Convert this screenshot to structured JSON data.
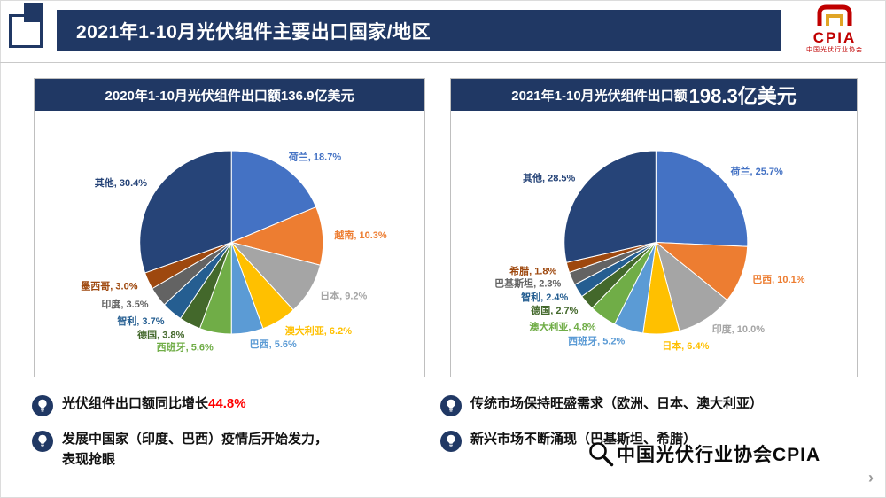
{
  "slide": {
    "title": "2021年1-10月光伏组件主要出口国家/地区"
  },
  "logo": {
    "acronym": "CPIA",
    "subtitle": "中国光伏行业协会"
  },
  "panels": [
    {
      "header_prefix": "2020年1-10月光伏组件出口额",
      "header_amount": "136.9亿美元"
    },
    {
      "header_prefix": "2021年1-10月光伏组件出口额",
      "header_amount": "198.3亿美元"
    }
  ],
  "chart_data": [
    {
      "type": "pie",
      "title": "2020年1-10月光伏组件出口额136.9亿美元",
      "unit": "%",
      "legend": "none",
      "data_labels": "outside",
      "start_angle_deg": 0,
      "direction": "clockwise",
      "categories": [
        "荷兰",
        "越南",
        "日本",
        "澳大利亚",
        "巴西",
        "西班牙",
        "德国",
        "智利",
        "印度",
        "墨西哥",
        "其他"
      ],
      "values": [
        18.7,
        10.3,
        9.2,
        6.2,
        5.6,
        5.6,
        3.8,
        3.7,
        3.5,
        3.0,
        30.4
      ],
      "labels": [
        "荷兰, 18.7%",
        "越南, 10.3%",
        "日本, 9.2%",
        "澳大利亚, 6.2%",
        "巴西, 5.6%",
        "西班牙, 5.6%",
        "德国, 3.8%",
        "智利, 3.7%",
        "印度, 3.5%",
        "墨西哥, 3.0%",
        "其他, 30.4%"
      ],
      "colors": [
        "#4472C4",
        "#ED7D31",
        "#A5A5A5",
        "#FFC000",
        "#5B9BD5",
        "#70AD47",
        "#43682B",
        "#255E91",
        "#636363",
        "#9E480E",
        "#264478"
      ]
    },
    {
      "type": "pie",
      "title": "2021年1-10月光伏组件出口额198.3亿美元",
      "unit": "%",
      "legend": "none",
      "data_labels": "outside",
      "start_angle_deg": 0,
      "direction": "clockwise",
      "categories": [
        "荷兰",
        "巴西",
        "印度",
        "日本",
        "西班牙",
        "澳大利亚",
        "德国",
        "智利",
        "巴基斯坦",
        "希腊",
        "其他"
      ],
      "values": [
        25.7,
        10.1,
        10.0,
        6.4,
        5.2,
        4.8,
        2.7,
        2.4,
        2.3,
        1.8,
        28.5
      ],
      "labels": [
        "荷兰, 25.7%",
        "巴西, 10.1%",
        "印度, 10.0%",
        "日本, 6.4%",
        "西班牙, 5.2%",
        "澳大利亚, 4.8%",
        "德国, 2.7%",
        "智利, 2.4%",
        "巴基斯坦, 2.3%",
        "希腊, 1.8%",
        "其他, 28.5%"
      ],
      "colors": [
        "#4472C4",
        "#ED7D31",
        "#A5A5A5",
        "#FFC000",
        "#5B9BD5",
        "#70AD47",
        "#43682B",
        "#255E91",
        "#636363",
        "#9E480E",
        "#264478"
      ]
    }
  ],
  "insights": {
    "left": [
      {
        "prefix": "光伏组件出口额同比增长",
        "highlight": "44.8%"
      },
      {
        "line1": "发展中国家（印度、巴西）疫情后开始发力，",
        "line2": "表现抢眼"
      }
    ],
    "right": [
      {
        "text": "传统市场保持旺盛需求（欧洲、日本、澳大利亚）"
      },
      {
        "text": "新兴市场不断涌现（巴基斯坦、希腊）"
      }
    ]
  },
  "watermark": {
    "text": "中国光伏行业协会CPIA"
  },
  "icons": {
    "chevron_right": "›"
  },
  "colors": {
    "navy": "#203864",
    "highlight_red": "#FF0000",
    "logo_red": "#C00000"
  }
}
